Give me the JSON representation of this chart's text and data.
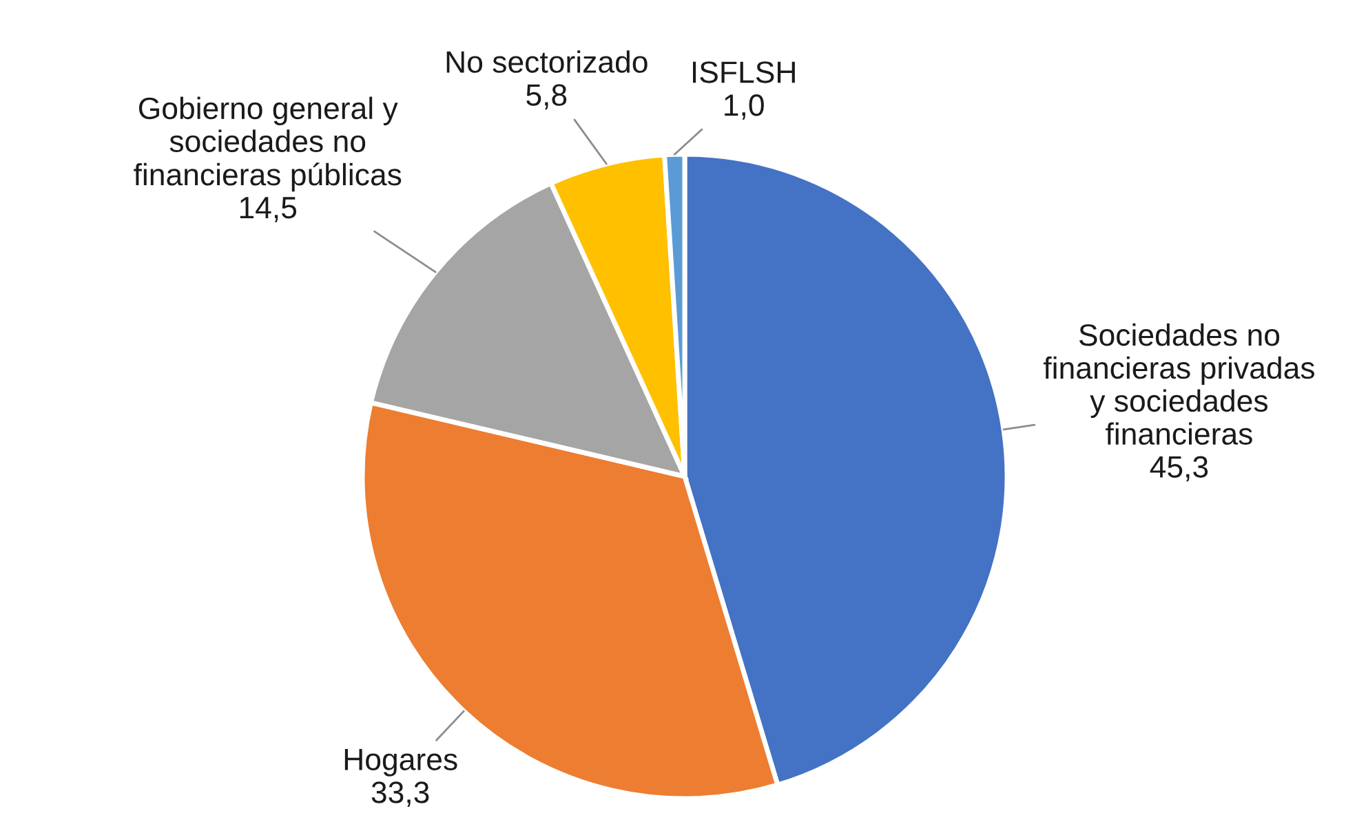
{
  "chart_data": {
    "type": "pie",
    "categories": [
      "Sociedades no\nfinancieras privadas\ny sociedades\nfinancieras",
      "Hogares",
      "Gobierno general y\nsociedades no\nfinancieras públicas",
      "No sectorizado",
      "ISFLSH"
    ],
    "values": [
      45.3,
      33.3,
      14.5,
      5.8,
      1.0
    ],
    "value_labels": [
      "45,3",
      "33,3",
      "14,5",
      "5,8",
      "1,0"
    ],
    "colors": [
      "#4472c4",
      "#ed7d31",
      "#a5a5a5",
      "#ffc000",
      "#5b9bd5"
    ]
  }
}
